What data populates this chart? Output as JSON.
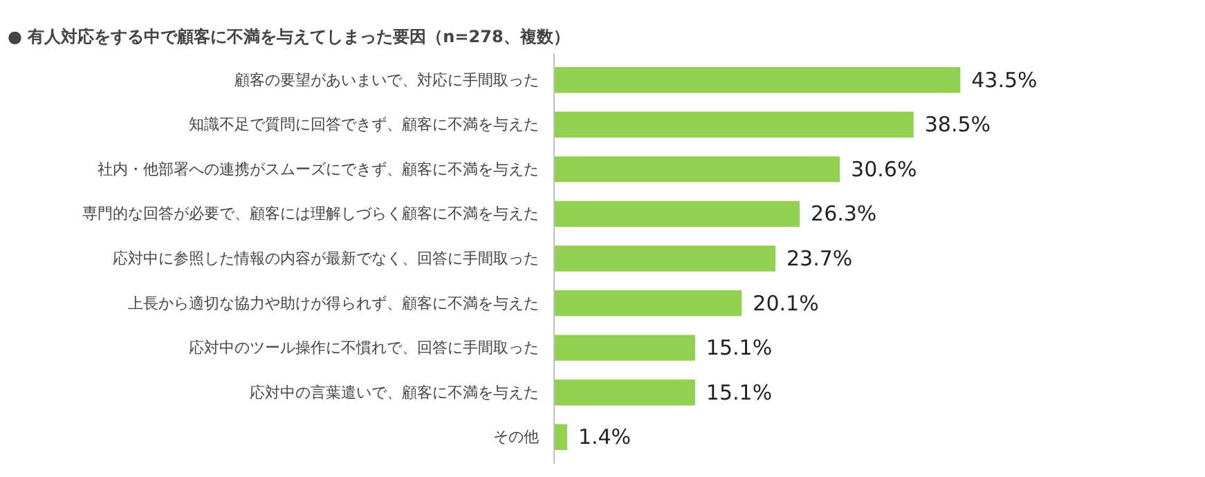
{
  "chart_data": {
    "type": "bar",
    "orientation": "horizontal",
    "title": "● 有人対応をする中で顧客に不満を与えてしまった要因（n=278、複数）",
    "categories": [
      "顧客の要望があいまいで、対応に手間取った",
      "知識不足で質問に回答できず、顧客に不満を与えた",
      "社内・他部署への連携がスムーズにできず、顧客に不満を与えた",
      "専門的な回答が必要で、顧客には理解しづらく顧客に不満を与えた",
      "応対中に参照した情報の内容が最新でなく、回答に手間取った",
      "上長から適切な協力や助けが得られず、顧客に不満を与えた",
      "応対中のツール操作に不慣れで、回答に手間取った",
      "応対中の言葉遣いで、顧客に不満を与えた",
      "その他"
    ],
    "values": [
      43.5,
      38.5,
      30.6,
      26.3,
      23.7,
      20.1,
      15.1,
      15.1,
      1.4
    ],
    "value_labels": [
      "43.5%",
      "38.5%",
      "30.6%",
      "26.3%",
      "23.7%",
      "20.1%",
      "15.1%",
      "15.1%",
      "1.4%"
    ],
    "color": "#92d050",
    "grid": false
  }
}
